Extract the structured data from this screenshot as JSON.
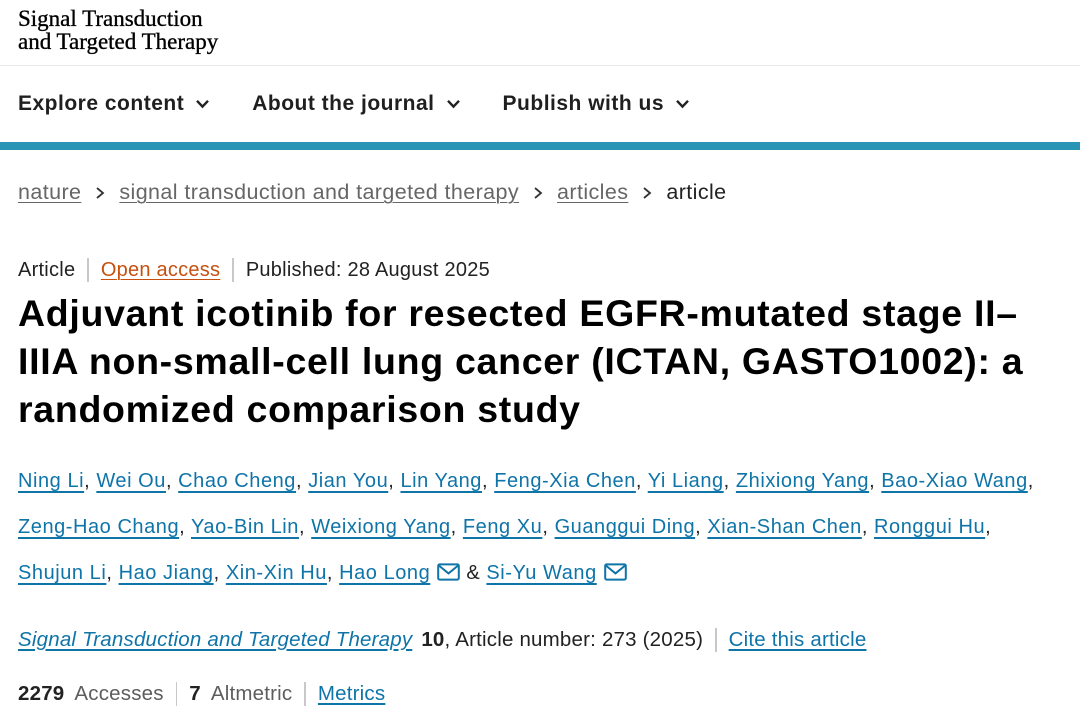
{
  "brand": {
    "logo_line1": "Signal Transduction",
    "logo_line2": "and Targeted Therapy"
  },
  "nav": {
    "items": [
      {
        "label": "Explore content"
      },
      {
        "label": "About the journal"
      },
      {
        "label": "Publish with us"
      }
    ]
  },
  "breadcrumb": {
    "items": [
      {
        "label": "nature",
        "link": true
      },
      {
        "label": "signal transduction and targeted therapy",
        "link": true
      },
      {
        "label": "articles",
        "link": true
      },
      {
        "label": "article",
        "link": false
      }
    ]
  },
  "meta": {
    "type": "Article",
    "access": "Open access",
    "published": "Published: 28 August 2025"
  },
  "title": "Adjuvant icotinib for resected EGFR-mutated stage II–IIIA non-small-cell lung cancer (ICTAN, GASTO1002): a randomized comparison study",
  "authors": {
    "list": [
      {
        "name": "Ning Li"
      },
      {
        "name": "Wei Ou"
      },
      {
        "name": "Chao Cheng"
      },
      {
        "name": "Jian You"
      },
      {
        "name": "Lin Yang"
      },
      {
        "name": "Feng-Xia Chen"
      },
      {
        "name": "Yi Liang"
      },
      {
        "name": "Zhixiong Yang"
      },
      {
        "name": "Bao-Xiao Wang"
      },
      {
        "name": "Zeng-Hao Chang"
      },
      {
        "name": "Yao-Bin Lin"
      },
      {
        "name": "Weixiong Yang"
      },
      {
        "name": "Feng Xu"
      },
      {
        "name": "Guanggui Ding"
      },
      {
        "name": "Xian-Shan Chen"
      },
      {
        "name": "Ronggui Hu"
      },
      {
        "name": "Shujun Li"
      },
      {
        "name": "Hao Jiang"
      },
      {
        "name": "Xin-Xin Hu"
      },
      {
        "name": "Hao Long",
        "email": true
      },
      {
        "name": "Si-Yu Wang",
        "email": true
      }
    ]
  },
  "citation": {
    "journal": "Signal Transduction and Targeted Therapy",
    "volume": "10",
    "article_info": ", Article number: 273 (2025)",
    "cite_link": "Cite this article"
  },
  "metrics": {
    "accesses_count": "2279",
    "accesses_label": "Accesses",
    "altmetric_count": "7",
    "altmetric_label": "Altmetric",
    "metrics_link": "Metrics"
  },
  "colors": {
    "accent_teal": "#2a96b5",
    "link_blue": "#0f74a8",
    "open_access_orange": "#c5500f"
  }
}
